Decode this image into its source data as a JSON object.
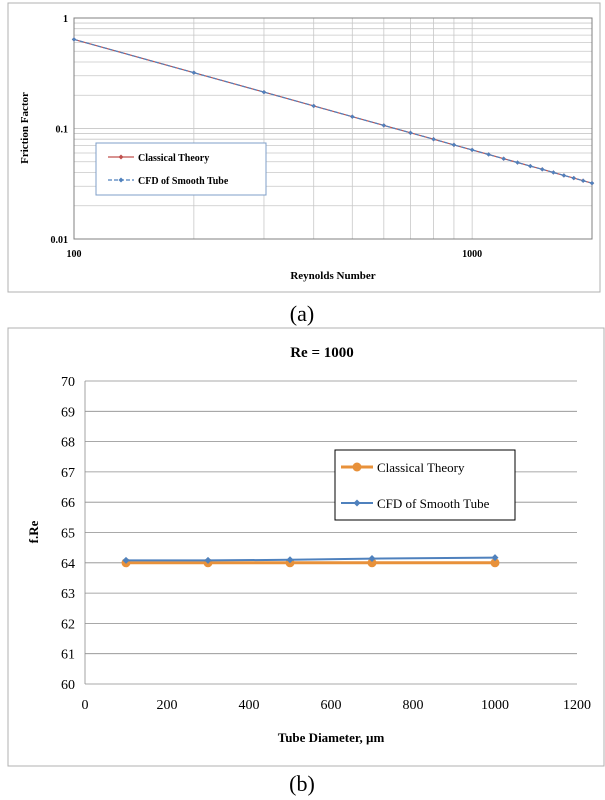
{
  "charts": [
    {
      "caption": "(a)",
      "chart_data": {
        "type": "line",
        "title": "",
        "xlabel": "Reynolds Number",
        "ylabel": "Friction Factor",
        "xscale": "log",
        "yscale": "log",
        "xlim": [
          100,
          2000
        ],
        "ylim": [
          0.01,
          1
        ],
        "xticks": [
          "100",
          "1000"
        ],
        "yticks": [
          "0.01",
          "0.1",
          "1"
        ],
        "grid": true,
        "legend_position": "center-left",
        "series": [
          {
            "name": "Classical Theory",
            "color": "#C0504D",
            "marker": "diamond",
            "x": [
              100,
              200,
              300,
              400,
              500,
              600,
              700,
              800,
              900,
              1000,
              1100,
              1200,
              1300,
              1400,
              1500,
              1600,
              1700,
              1800,
              1900,
              2000
            ],
            "y": [
              0.64,
              0.32,
              0.2133,
              0.16,
              0.128,
              0.1067,
              0.0914,
              0.08,
              0.0711,
              0.064,
              0.0582,
              0.0533,
              0.0492,
              0.0457,
              0.0427,
              0.04,
              0.0376,
              0.0356,
              0.0337,
              0.032
            ]
          },
          {
            "name": "CFD of Smooth Tube",
            "color": "#4F81BD",
            "marker": "diamond",
            "dashed": true,
            "x": [
              100,
              200,
              300,
              400,
              500,
              600,
              700,
              800,
              900,
              1000,
              1100,
              1200,
              1300,
              1400,
              1500,
              1600,
              1700,
              1800,
              1900,
              2000
            ],
            "y": [
              0.64,
              0.32,
              0.2133,
              0.16,
              0.128,
              0.1067,
              0.0914,
              0.08,
              0.0711,
              0.064,
              0.0582,
              0.0533,
              0.0492,
              0.0457,
              0.0427,
              0.04,
              0.0376,
              0.0356,
              0.0337,
              0.032
            ]
          }
        ]
      }
    },
    {
      "caption": "(b)",
      "chart_data": {
        "type": "line",
        "title": "Re = 1000",
        "xlabel": "Tube Diameter, µm",
        "ylabel": "f.Re",
        "xlim": [
          0,
          1200
        ],
        "ylim": [
          60,
          70
        ],
        "xticks": [
          "0",
          "200",
          "400",
          "600",
          "800",
          "1000",
          "1200"
        ],
        "yticks": [
          "60",
          "61",
          "62",
          "63",
          "64",
          "65",
          "66",
          "67",
          "68",
          "69",
          "70"
        ],
        "grid": true,
        "legend_position": "center-right",
        "series": [
          {
            "name": "Classical Theory",
            "color": "#E8913A",
            "marker": "circle",
            "x": [
              100,
              300,
              500,
              700,
              1000
            ],
            "y": [
              64,
              64,
              64,
              64,
              64
            ]
          },
          {
            "name": "CFD of Smooth Tube",
            "color": "#4F81BD",
            "marker": "diamond",
            "x": [
              100,
              300,
              500,
              700,
              1000
            ],
            "y": [
              64.08,
              64.08,
              64.1,
              64.14,
              64.17
            ]
          }
        ]
      }
    }
  ]
}
